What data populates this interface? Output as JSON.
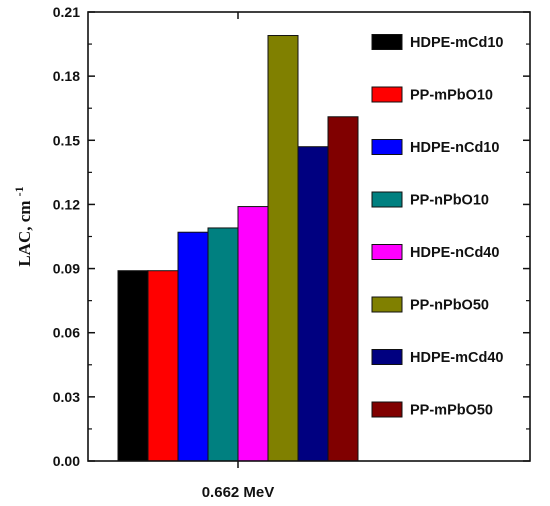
{
  "chart_data": {
    "type": "bar",
    "categories": [
      "0.662 MeV"
    ],
    "ylabel": "LAC, cm",
    "ylabel_sup": "-1",
    "ylim": [
      0,
      0.21
    ],
    "yticks": [
      "0.00",
      "0.03",
      "0.06",
      "0.09",
      "0.12",
      "0.15",
      "0.18",
      "0.21"
    ],
    "grid": false,
    "legend_position": "right",
    "series": [
      {
        "name": "HDPE-mCd10",
        "color": "#000000",
        "values": [
          0.089
        ]
      },
      {
        "name": "PP-mPbO10",
        "color": "#ff0000",
        "values": [
          0.089
        ]
      },
      {
        "name": "HDPE-nCd10",
        "color": "#0000ff",
        "values": [
          0.107
        ]
      },
      {
        "name": "PP-nPbO10",
        "color": "#008080",
        "values": [
          0.109
        ]
      },
      {
        "name": "HDPE-nCd40",
        "color": "#ff00ff",
        "values": [
          0.119
        ]
      },
      {
        "name": "PP-nPbO50",
        "color": "#808000",
        "values": [
          0.199
        ]
      },
      {
        "name": "HDPE-mCd40",
        "color": "#000080",
        "values": [
          0.147
        ]
      },
      {
        "name": "PP-mPbO50",
        "color": "#800000",
        "values": [
          0.161
        ]
      }
    ]
  }
}
